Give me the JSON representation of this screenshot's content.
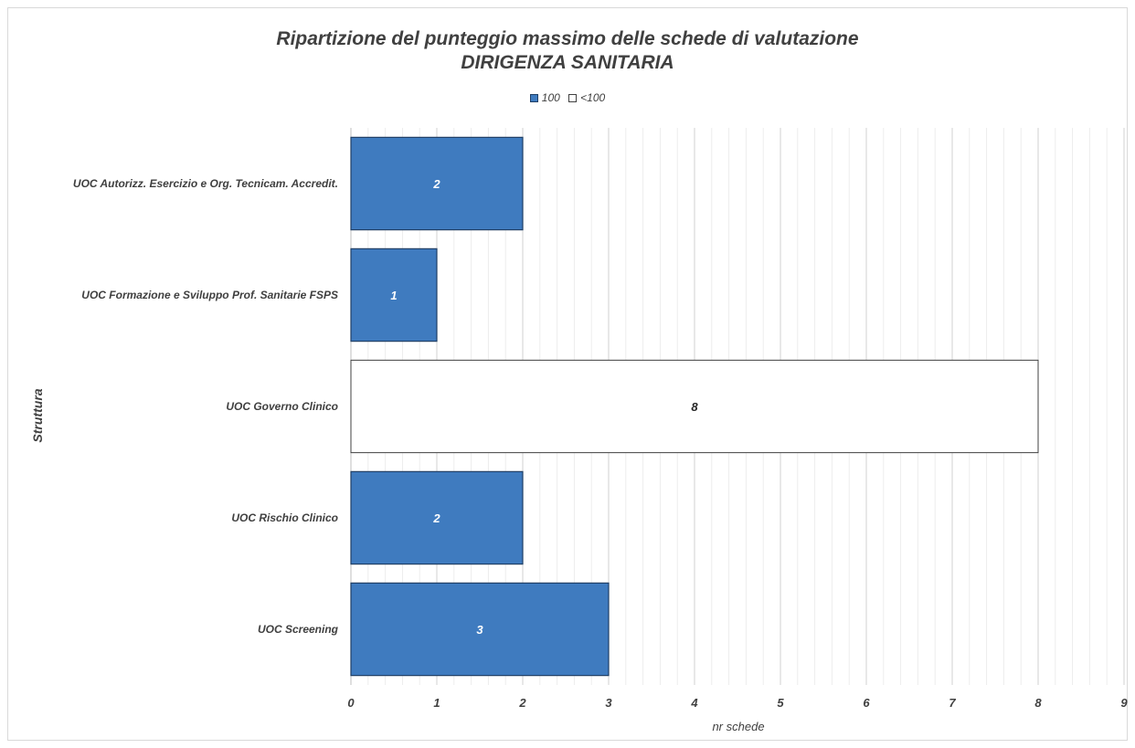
{
  "chart_data": {
    "type": "bar",
    "orientation": "horizontal",
    "stacked": true,
    "title": "Ripartizione del punteggio massimo delle schede di valutazione",
    "subtitle": "DIRIGENZA SANITARIA",
    "xlabel": "nr schede",
    "ylabel": "Struttura",
    "categories": [
      "UOC Autorizz. Esercizio e Org. Tecnicam. Accredit.",
      "UOC Formazione e Sviluppo Prof. Sanitarie FSPS",
      "UOC Governo Clinico",
      "UOC Rischio Clinico",
      "UOC Screening"
    ],
    "series": [
      {
        "name": "100",
        "color": "#3f7bbf",
        "values": [
          2,
          1,
          0,
          2,
          3
        ]
      },
      {
        "name": "<100",
        "color": "#ffffff",
        "values": [
          0,
          0,
          8,
          0,
          0
        ]
      }
    ],
    "xlim": [
      0,
      9
    ],
    "xticks": [
      "0",
      "1",
      "2",
      "3",
      "4",
      "5",
      "6",
      "7",
      "8",
      "9"
    ],
    "grid": true,
    "legend": "top"
  }
}
